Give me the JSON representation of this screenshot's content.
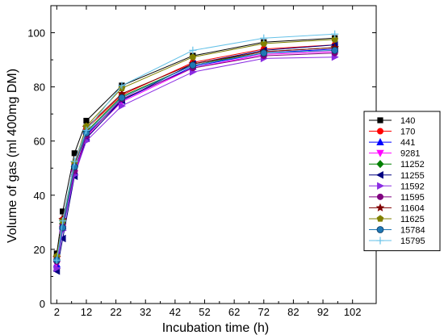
{
  "chart_data": {
    "type": "line",
    "title": "",
    "xlabel": "Incubation time (h)",
    "ylabel": "Volume of gas (ml 400mg DM)",
    "xlim": [
      0,
      110
    ],
    "ylim": [
      0,
      110
    ],
    "xticks": [
      2,
      12,
      22,
      32,
      42,
      52,
      62,
      72,
      82,
      92,
      102
    ],
    "yticks": [
      0,
      20,
      40,
      60,
      80,
      100
    ],
    "grid": false,
    "legend_position": "right",
    "x": [
      2,
      4,
      8,
      12,
      24,
      48,
      72,
      96
    ],
    "series": [
      {
        "name": "140",
        "color": "#000000",
        "marker": "square",
        "values": [
          18.5,
          34,
          55.5,
          67.5,
          80.5,
          91.5,
          96.5,
          98
        ]
      },
      {
        "name": "170",
        "color": "#ff0000",
        "marker": "circle",
        "values": [
          17,
          31,
          51.5,
          64.5,
          77,
          89,
          94,
          95.5
        ]
      },
      {
        "name": "441",
        "color": "#0000ff",
        "marker": "triangle-up",
        "values": [
          14.5,
          28.5,
          48.5,
          62.5,
          75,
          87.5,
          92.5,
          94
        ]
      },
      {
        "name": "9281",
        "color": "#ff00ff",
        "marker": "triangle-down",
        "values": [
          14.5,
          27.5,
          48,
          61.5,
          74.5,
          87,
          92,
          93
        ]
      },
      {
        "name": "11252",
        "color": "#008000",
        "marker": "diamond",
        "values": [
          16,
          29.5,
          50.5,
          63.5,
          76.5,
          88,
          93,
          94.5
        ]
      },
      {
        "name": "11255",
        "color": "#000080",
        "marker": "triangle-left",
        "values": [
          12,
          24,
          47,
          61,
          75,
          88.5,
          93.5,
          95.5
        ]
      },
      {
        "name": "11592",
        "color": "#8a2be2",
        "marker": "triangle-right",
        "values": [
          13,
          27,
          47.5,
          60,
          73,
          85.5,
          90.5,
          91
        ]
      },
      {
        "name": "11595",
        "color": "#800080",
        "marker": "circle",
        "values": [
          15.5,
          29,
          49,
          62,
          75.5,
          87,
          91.5,
          92.5
        ]
      },
      {
        "name": "11604",
        "color": "#800000",
        "marker": "star",
        "values": [
          17,
          31,
          52,
          65,
          77.5,
          88.5,
          93,
          94.5
        ]
      },
      {
        "name": "11625",
        "color": "#808000",
        "marker": "pentagon",
        "values": [
          17.5,
          30.5,
          52,
          65.5,
          79.5,
          91,
          96,
          97.5
        ]
      },
      {
        "name": "15784",
        "color": "#1f77b4",
        "marker": "circle-half",
        "values": [
          16,
          28,
          50.5,
          63,
          76,
          88,
          92.5,
          93.5
        ]
      },
      {
        "name": "15795",
        "color": "#66c2e8",
        "marker": "plus",
        "values": [
          16,
          30.5,
          52.5,
          64,
          80.5,
          93.5,
          98,
          99.5
        ]
      }
    ]
  }
}
